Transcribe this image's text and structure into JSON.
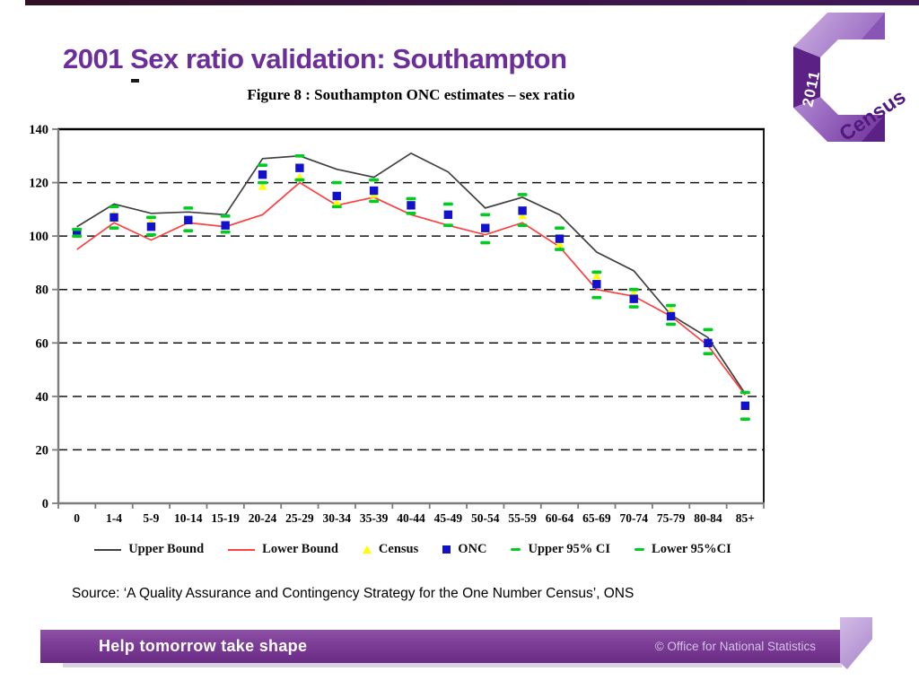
{
  "slide": {
    "title": "2001 Sex ratio validation: Southampton",
    "source": "Source: ‘A Quality Assurance and Contingency Strategy for the One Number Census’, ONS"
  },
  "logo": {
    "year": "2011",
    "word": "Census"
  },
  "footer": {
    "tagline": "Help tomorrow take shape",
    "copyright": "© Office for National Statistics",
    "bar_color": "#7c3d96",
    "ribbon_color": "#b79ad3"
  },
  "chart_data": {
    "type": "line",
    "title": "Figure 8 : Southampton ONC estimates – sex ratio",
    "categories": [
      "0",
      "1-4",
      "5-9",
      "10-14",
      "15-19",
      "20-24",
      "25-29",
      "30-34",
      "35-39",
      "40-44",
      "45-49",
      "50-54",
      "55-59",
      "60-64",
      "65-69",
      "70-74",
      "75-79",
      "80-84",
      "85+"
    ],
    "xlabel": "",
    "ylabel": "",
    "ylim": [
      0,
      140
    ],
    "y_ticks": [
      0,
      20,
      40,
      60,
      80,
      100,
      120,
      140
    ],
    "grid": "horizontal dashed black lines every 20 units",
    "legend_position": "bottom",
    "series": [
      {
        "name": "Upper Bound",
        "type": "line",
        "color": "#404040",
        "values": [
          103.5,
          112,
          108.5,
          109,
          108,
          129,
          130,
          125,
          122,
          131,
          124,
          110.5,
          114.5,
          108,
          94,
          87,
          70.5,
          62,
          41
        ]
      },
      {
        "name": "Lower Bound",
        "type": "line",
        "color": "#ff4040",
        "values": [
          95,
          105,
          98.5,
          105,
          103.5,
          108,
          120,
          111.5,
          114.5,
          108,
          104,
          100.5,
          105,
          96,
          80,
          77.5,
          70,
          59,
          40.5
        ]
      },
      {
        "name": "Census",
        "type": "marker-triangle",
        "color": "#ffff00",
        "values": [
          100.5,
          108,
          105,
          106,
          104,
          118.5,
          122,
          112.5,
          115.5,
          112,
          107.5,
          102.5,
          107.5,
          97,
          85,
          78.5,
          72,
          60,
          36.5
        ]
      },
      {
        "name": "ONC",
        "type": "marker-square",
        "color": "#1212cc",
        "values": [
          101.5,
          107,
          103.5,
          106,
          104,
          123,
          125.5,
          115,
          117,
          111.5,
          108,
          103,
          109.5,
          99,
          82,
          76.5,
          70,
          60,
          36.5
        ]
      },
      {
        "name": "Upper 95% CI",
        "type": "marker-dash",
        "color": "#00cc22",
        "values": [
          102.5,
          111,
          107,
          110.5,
          107.5,
          126.5,
          130,
          120,
          121,
          114,
          112,
          108,
          115.5,
          103,
          86.5,
          80,
          74,
          65,
          41.5
        ]
      },
      {
        "name": "Lower 95%CI",
        "type": "marker-dash",
        "color": "#00cc22",
        "values": [
          100,
          103,
          100.5,
          102,
          101.5,
          120,
          121,
          111,
          113,
          108.5,
          104,
          97.5,
          104,
          95,
          77,
          73.5,
          67,
          56,
          31.5
        ]
      }
    ]
  }
}
